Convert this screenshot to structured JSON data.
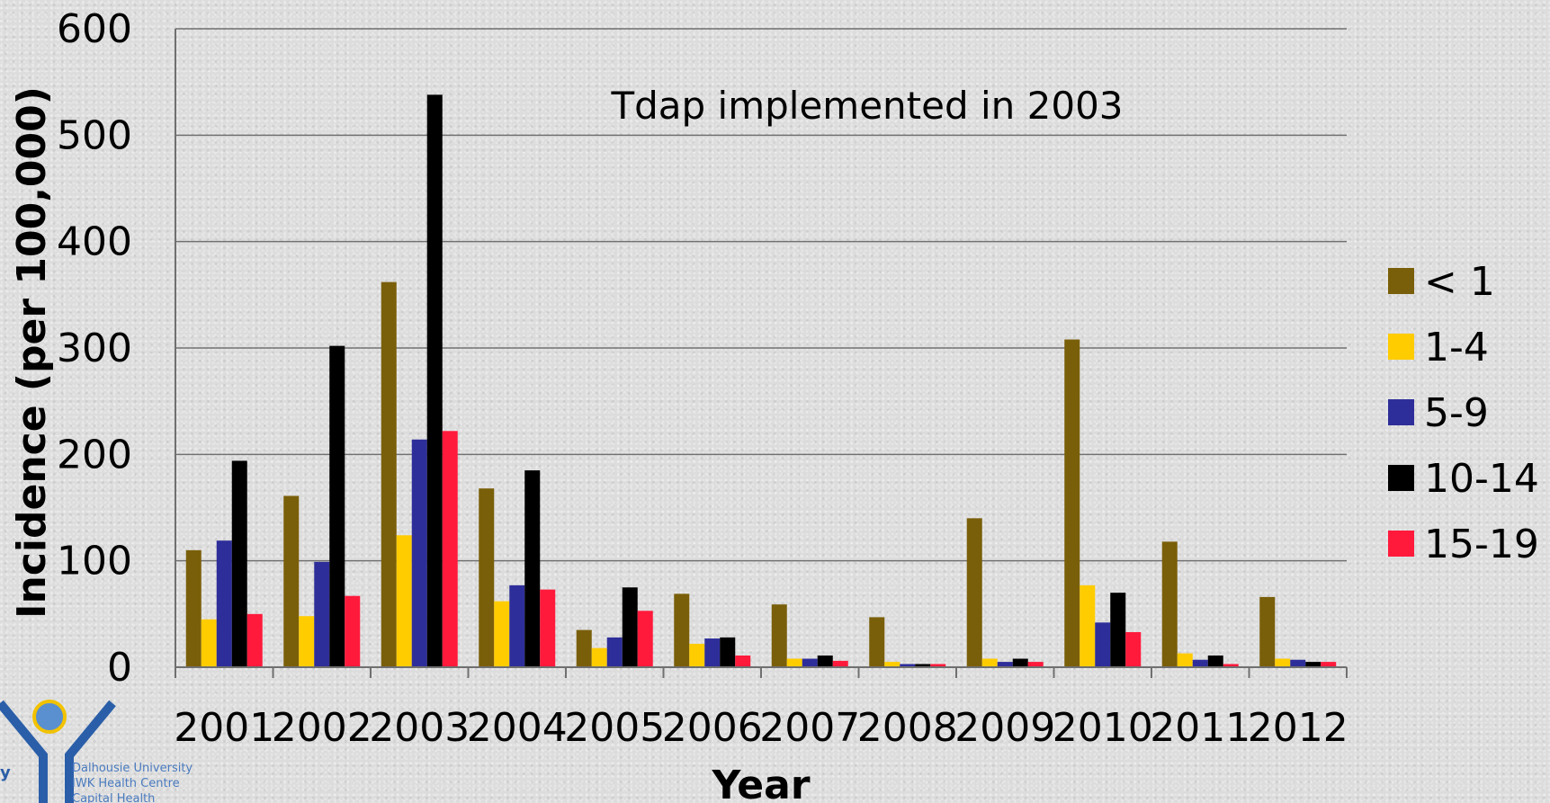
{
  "chart_data": {
    "type": "bar",
    "title": "",
    "xlabel": "Year",
    "ylabel": "Incidence (per 100,000)",
    "ylim": [
      0,
      600
    ],
    "yticks": [
      0,
      100,
      200,
      300,
      400,
      500,
      600
    ],
    "grid": true,
    "legend_position": "right",
    "annotation": "Tdap implemented in 2003",
    "categories": [
      "2001",
      "2002",
      "2003",
      "2004",
      "2005",
      "2006",
      "2007",
      "2008",
      "2009",
      "2010",
      "2011",
      "2012"
    ],
    "series": [
      {
        "name": "< 1",
        "color": "#7a5f0a",
        "values": [
          110,
          161,
          362,
          168,
          35,
          69,
          59,
          47,
          140,
          308,
          118,
          66
        ]
      },
      {
        "name": "1-4",
        "color": "#ffcc00",
        "values": [
          45,
          48,
          124,
          62,
          18,
          22,
          8,
          5,
          8,
          77,
          13,
          8
        ]
      },
      {
        "name": "5-9",
        "color": "#2e2e9a",
        "values": [
          119,
          99,
          214,
          77,
          28,
          27,
          8,
          3,
          5,
          42,
          7,
          7
        ]
      },
      {
        "name": "10-14",
        "color": "#000000",
        "values": [
          194,
          302,
          538,
          185,
          75,
          28,
          11,
          3,
          8,
          70,
          11,
          5
        ]
      },
      {
        "name": "15-19",
        "color": "#ff1a3c",
        "values": [
          50,
          67,
          222,
          73,
          53,
          11,
          6,
          3,
          5,
          33,
          3,
          5
        ]
      }
    ]
  },
  "logo": {
    "fragment": "y",
    "lines": [
      "Dalhousie University",
      "IWK Health Centre",
      "Capital Health"
    ]
  }
}
